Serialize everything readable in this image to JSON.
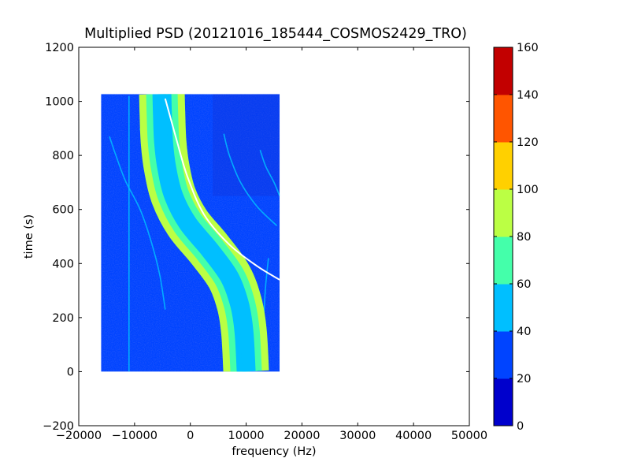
{
  "chart_data": {
    "type": "heatmap",
    "title": "Multiplied PSD (20121016_185444_COSMOS2429_TRO)",
    "xlabel": "frequency (Hz)",
    "ylabel": "time (s)",
    "xlim": [
      -20000,
      50000
    ],
    "ylim": [
      -200,
      1200
    ],
    "xticks": [
      -20000,
      -10000,
      0,
      10000,
      20000,
      30000,
      40000,
      50000
    ],
    "yticks": [
      -200,
      0,
      200,
      400,
      600,
      800,
      1000,
      1200
    ],
    "xticklabels": [
      "−20000",
      "−10000",
      "0",
      "10000",
      "20000",
      "30000",
      "40000",
      "50000"
    ],
    "yticklabels": [
      "−200",
      "0",
      "200",
      "400",
      "600",
      "800",
      "1000",
      "1200"
    ],
    "grid": false,
    "data_extent": {
      "x": [
        -16000,
        16000
      ],
      "y": [
        0,
        1027
      ]
    },
    "background_value": 30,
    "main_trace": {
      "description": "broad doppler-shifted carrier band (S-curve)",
      "points": [
        [
          10000,
          0
        ],
        [
          9600,
          150
        ],
        [
          8800,
          250
        ],
        [
          7000,
          350
        ],
        [
          3500,
          450
        ],
        [
          -500,
          550
        ],
        [
          -3000,
          650
        ],
        [
          -4200,
          750
        ],
        [
          -4800,
          850
        ],
        [
          -5000,
          950
        ],
        [
          -5100,
          1027
        ]
      ],
      "values": [
        [
          0,
          80
        ],
        [
          1,
          70
        ],
        [
          2,
          55
        ],
        [
          3,
          40
        ]
      ]
    },
    "narrow_trace": {
      "points": [
        [
          16000,
          340
        ],
        [
          12000,
          390
        ],
        [
          7000,
          470
        ],
        [
          2500,
          580
        ],
        [
          -500,
          720
        ],
        [
          -2500,
          860
        ],
        [
          -4500,
          1010
        ]
      ],
      "value": 150
    },
    "faint_traces": [
      {
        "points": [
          [
            -14500,
            870
          ],
          [
            -13000,
            780
          ],
          [
            -11500,
            700
          ],
          [
            -9000,
            600
          ],
          [
            -7000,
            480
          ],
          [
            -5500,
            360
          ],
          [
            -4500,
            230
          ]
        ],
        "value": 55
      },
      {
        "points": [
          [
            -9000,
            900
          ],
          [
            -8000,
            820
          ],
          [
            -6000,
            720
          ],
          [
            -3000,
            620
          ],
          [
            1000,
            540
          ],
          [
            4500,
            470
          ],
          [
            7500,
            410
          ]
        ],
        "value": 50
      },
      {
        "points": [
          [
            6000,
            880
          ],
          [
            7000,
            800
          ],
          [
            9000,
            700
          ],
          [
            12000,
            610
          ],
          [
            15500,
            540
          ]
        ],
        "value": 50
      },
      {
        "points": [
          [
            12500,
            820
          ],
          [
            13500,
            760
          ],
          [
            15000,
            700
          ],
          [
            16000,
            650
          ]
        ],
        "value": 45
      },
      {
        "points": [
          [
            14000,
            420
          ],
          [
            13500,
            320
          ],
          [
            13200,
            220
          ],
          [
            13000,
            150
          ]
        ],
        "value": 45
      },
      {
        "points": [
          [
            -11000,
            1020
          ],
          [
            -11000,
            800
          ],
          [
            -11000,
            600
          ],
          [
            -11000,
            400
          ],
          [
            -11000,
            200
          ],
          [
            -11000,
            0
          ]
        ],
        "value": 40
      }
    ],
    "colorbar": {
      "levels": [
        0,
        20,
        40,
        60,
        80,
        100,
        120,
        140,
        160
      ],
      "ticklabels": [
        "0",
        "20",
        "40",
        "60",
        "80",
        "100",
        "120",
        "140",
        "160"
      ],
      "colors": [
        "#0000cc",
        "#0044ff",
        "#00bfff",
        "#44ffaa",
        "#bbff44",
        "#ffd000",
        "#ff5500",
        "#c20000"
      ]
    }
  }
}
